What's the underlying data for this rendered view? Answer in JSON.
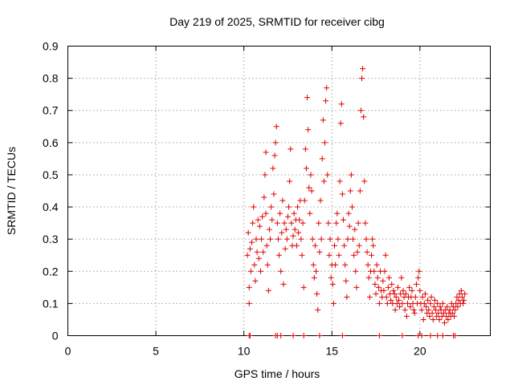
{
  "chart_data": {
    "type": "scatter",
    "title": "Day 219 of 2025, SRMTID for receiver cibg",
    "xlabel": "GPS time / hours",
    "ylabel": "SRMTID / TECUs",
    "xlim": [
      0,
      24
    ],
    "ylim": [
      0,
      0.9
    ],
    "x_ticks": [
      0,
      5,
      10,
      15,
      20
    ],
    "y_ticks": [
      0,
      0.1,
      0.2,
      0.3,
      0.4,
      0.5,
      0.6,
      0.7,
      0.8,
      0.9
    ],
    "x_tick_labels": [
      "0",
      "5",
      "10",
      "15",
      "20"
    ],
    "y_tick_labels": [
      "0",
      "0.1",
      "0.2",
      "0.3",
      "0.4",
      "0.5",
      "0.6",
      "0.7",
      "0.8",
      "0.9"
    ],
    "grid": true,
    "marker": "+",
    "color": "#e00000",
    "series": [
      {
        "name": "SRMTID",
        "points": [
          [
            10.2,
            0.25
          ],
          [
            10.25,
            0.32
          ],
          [
            10.3,
            0.15
          ],
          [
            10.3,
            0.1
          ],
          [
            10.35,
            0.27
          ],
          [
            10.4,
            0.2
          ],
          [
            10.45,
            0.29
          ],
          [
            10.5,
            0.35
          ],
          [
            10.55,
            0.4
          ],
          [
            10.6,
            0.22
          ],
          [
            10.65,
            0.17
          ],
          [
            10.7,
            0.3
          ],
          [
            10.75,
            0.26
          ],
          [
            10.8,
            0.36
          ],
          [
            10.85,
            0.24
          ],
          [
            10.9,
            0.34
          ],
          [
            10.95,
            0.2
          ],
          [
            11.0,
            0.3
          ],
          [
            11.05,
            0.37
          ],
          [
            11.1,
            0.26
          ],
          [
            11.15,
            0.43
          ],
          [
            11.2,
            0.5
          ],
          [
            11.25,
            0.38
          ],
          [
            11.25,
            0.57
          ],
          [
            11.3,
            0.28
          ],
          [
            11.35,
            0.22
          ],
          [
            11.4,
            0.14
          ],
          [
            11.45,
            0.33
          ],
          [
            11.5,
            0.3
          ],
          [
            11.55,
            0.4
          ],
          [
            11.6,
            0.36
          ],
          [
            11.65,
            0.52
          ],
          [
            11.7,
            0.44
          ],
          [
            11.75,
            0.56
          ],
          [
            11.8,
            0.6
          ],
          [
            11.85,
            0.65
          ],
          [
            11.9,
            0.35
          ],
          [
            11.95,
            0.3
          ],
          [
            12.0,
            0.25
          ],
          [
            12.05,
            0.38
          ],
          [
            12.1,
            0.2
          ],
          [
            12.15,
            0.32
          ],
          [
            12.2,
            0.42
          ],
          [
            12.25,
            0.16
          ],
          [
            12.3,
            0.35
          ],
          [
            12.35,
            0.27
          ],
          [
            12.4,
            0.33
          ],
          [
            12.45,
            0.3
          ],
          [
            12.5,
            0.37
          ],
          [
            12.55,
            0.4
          ],
          [
            12.6,
            0.48
          ],
          [
            12.65,
            0.58
          ],
          [
            12.7,
            0.35
          ],
          [
            12.75,
            0.28
          ],
          [
            12.8,
            0.31
          ],
          [
            12.85,
            0.38
          ],
          [
            12.9,
            0.33
          ],
          [
            12.95,
            0.36
          ],
          [
            13.0,
            0.28
          ],
          [
            13.05,
            0.4
          ],
          [
            13.1,
            0.32
          ],
          [
            13.15,
            0.36
          ],
          [
            13.2,
            0.42
          ],
          [
            13.25,
            0.3
          ],
          [
            13.3,
            0.25
          ],
          [
            13.35,
            0.35
          ],
          [
            13.4,
            0.15
          ],
          [
            13.45,
            0.42
          ],
          [
            13.5,
            0.58
          ],
          [
            13.55,
            0.52
          ],
          [
            13.6,
            0.74
          ],
          [
            13.65,
            0.64
          ],
          [
            13.7,
            0.46
          ],
          [
            13.75,
            0.38
          ],
          [
            13.8,
            0.5
          ],
          [
            13.85,
            0.45
          ],
          [
            13.9,
            0.3
          ],
          [
            13.95,
            0.22
          ],
          [
            14.0,
            0.18
          ],
          [
            14.05,
            0.28
          ],
          [
            14.1,
            0.2
          ],
          [
            14.15,
            0.13
          ],
          [
            14.2,
            0.08
          ],
          [
            14.25,
            0.35
          ],
          [
            14.3,
            0.26
          ],
          [
            14.35,
            0.42
          ],
          [
            14.4,
            0.3
          ],
          [
            14.45,
            0.55
          ],
          [
            14.5,
            0.67
          ],
          [
            14.55,
            0.48
          ],
          [
            14.6,
            0.6
          ],
          [
            14.65,
            0.73
          ],
          [
            14.7,
            0.77
          ],
          [
            14.75,
            0.5
          ],
          [
            14.8,
            0.35
          ],
          [
            14.85,
            0.25
          ],
          [
            14.9,
            0.3
          ],
          [
            14.95,
            0.18
          ],
          [
            15.0,
            0.22
          ],
          [
            15.05,
            0.16
          ],
          [
            15.1,
            0.1
          ],
          [
            15.15,
            0.28
          ],
          [
            15.2,
            0.22
          ],
          [
            15.25,
            0.35
          ],
          [
            15.3,
            0.38
          ],
          [
            15.35,
            0.3
          ],
          [
            15.4,
            0.25
          ],
          [
            15.45,
            0.48
          ],
          [
            15.5,
            0.66
          ],
          [
            15.55,
            0.72
          ],
          [
            15.6,
            0.44
          ],
          [
            15.65,
            0.36
          ],
          [
            15.7,
            0.28
          ],
          [
            15.75,
            0.22
          ],
          [
            15.8,
            0.17
          ],
          [
            15.85,
            0.12
          ],
          [
            15.9,
            0.3
          ],
          [
            15.95,
            0.38
          ],
          [
            16.0,
            0.34
          ],
          [
            16.05,
            0.45
          ],
          [
            16.1,
            0.5
          ],
          [
            16.15,
            0.4
          ],
          [
            16.2,
            0.3
          ],
          [
            16.25,
            0.25
          ],
          [
            16.3,
            0.33
          ],
          [
            16.35,
            0.2
          ],
          [
            16.4,
            0.15
          ],
          [
            16.45,
            0.26
          ],
          [
            16.5,
            0.35
          ],
          [
            16.55,
            0.28
          ],
          [
            16.6,
            0.45
          ],
          [
            16.65,
            0.7
          ],
          [
            16.7,
            0.8
          ],
          [
            16.75,
            0.83
          ],
          [
            16.8,
            0.68
          ],
          [
            16.85,
            0.48
          ],
          [
            16.9,
            0.35
          ],
          [
            16.95,
            0.3
          ],
          [
            17.0,
            0.26
          ],
          [
            17.05,
            0.22
          ],
          [
            17.1,
            0.18
          ],
          [
            17.15,
            0.12
          ],
          [
            17.2,
            0.2
          ],
          [
            17.25,
            0.25
          ],
          [
            17.3,
            0.3
          ],
          [
            17.35,
            0.28
          ],
          [
            17.4,
            0.2
          ],
          [
            17.45,
            0.16
          ],
          [
            17.5,
            0.13
          ],
          [
            17.55,
            0.22
          ],
          [
            17.6,
            0.18
          ],
          [
            17.65,
            0.15
          ],
          [
            17.7,
            0.1
          ],
          [
            17.75,
            0.2
          ],
          [
            17.8,
            0.14
          ],
          [
            17.85,
            0.12
          ],
          [
            17.9,
            0.17
          ],
          [
            17.95,
            0.14
          ],
          [
            18.0,
            0.2
          ],
          [
            18.05,
            0.25
          ],
          [
            18.1,
            0.12
          ],
          [
            18.15,
            0.1
          ],
          [
            18.2,
            0.15
          ],
          [
            18.25,
            0.18
          ],
          [
            18.3,
            0.13
          ],
          [
            18.35,
            0.11
          ],
          [
            18.4,
            0.16
          ],
          [
            18.45,
            0.1
          ],
          [
            18.5,
            0.14
          ],
          [
            18.55,
            0.13
          ],
          [
            18.6,
            0.08
          ],
          [
            18.65,
            0.12
          ],
          [
            18.7,
            0.1
          ],
          [
            18.75,
            0.15
          ],
          [
            18.8,
            0.11
          ],
          [
            18.85,
            0.09
          ],
          [
            18.9,
            0.13
          ],
          [
            18.95,
            0.18
          ],
          [
            19.0,
            0.1
          ],
          [
            19.05,
            0.14
          ],
          [
            19.1,
            0.12
          ],
          [
            19.15,
            0.08
          ],
          [
            19.2,
            0.13
          ],
          [
            19.25,
            0.06
          ],
          [
            19.3,
            0.1
          ],
          [
            19.35,
            0.12
          ],
          [
            19.4,
            0.15
          ],
          [
            19.45,
            0.09
          ],
          [
            19.5,
            0.12
          ],
          [
            19.55,
            0.14
          ],
          [
            19.6,
            0.1
          ],
          [
            19.65,
            0.08
          ],
          [
            19.7,
            0.07
          ],
          [
            19.75,
            0.12
          ],
          [
            19.8,
            0.16
          ],
          [
            19.85,
            0.1
          ],
          [
            19.9,
            0.18
          ],
          [
            19.95,
            0.2
          ],
          [
            20.0,
            0.14
          ],
          [
            20.05,
            0.1
          ],
          [
            20.1,
            0.08
          ],
          [
            20.15,
            0.12
          ],
          [
            20.2,
            0.05
          ],
          [
            20.25,
            0.1
          ],
          [
            20.3,
            0.13
          ],
          [
            20.35,
            0.09
          ],
          [
            20.4,
            0.07
          ],
          [
            20.45,
            0.11
          ],
          [
            20.5,
            0.08
          ],
          [
            20.55,
            0.06
          ],
          [
            20.6,
            0.1
          ],
          [
            20.65,
            0.12
          ],
          [
            20.7,
            0.07
          ],
          [
            20.75,
            0.05
          ],
          [
            20.8,
            0.09
          ],
          [
            20.85,
            0.11
          ],
          [
            20.9,
            0.08
          ],
          [
            20.95,
            0.06
          ],
          [
            21.0,
            0.1
          ],
          [
            21.05,
            0.07
          ],
          [
            21.1,
            0.05
          ],
          [
            21.15,
            0.09
          ],
          [
            21.2,
            0.08
          ],
          [
            21.25,
            0.06
          ],
          [
            21.3,
            0.1
          ],
          [
            21.35,
            0.07
          ],
          [
            21.4,
            0.04
          ],
          [
            21.45,
            0.08
          ],
          [
            21.5,
            0.06
          ],
          [
            21.55,
            0.09
          ],
          [
            21.6,
            0.05
          ],
          [
            21.65,
            0.07
          ],
          [
            21.7,
            0.08
          ],
          [
            21.75,
            0.06
          ],
          [
            21.8,
            0.1
          ],
          [
            21.85,
            0.07
          ],
          [
            21.9,
            0.09
          ],
          [
            21.95,
            0.06
          ],
          [
            22.0,
            0.08
          ],
          [
            22.05,
            0.1
          ],
          [
            22.1,
            0.12
          ],
          [
            22.15,
            0.09
          ],
          [
            22.2,
            0.11
          ],
          [
            22.25,
            0.13
          ],
          [
            22.3,
            0.1
          ],
          [
            22.35,
            0.14
          ],
          [
            22.4,
            0.12
          ],
          [
            22.45,
            0.1
          ],
          [
            22.5,
            0.11
          ],
          [
            22.55,
            0.13
          ],
          [
            10.3,
            0.0
          ],
          [
            10.35,
            0.0
          ],
          [
            11.8,
            0.0
          ],
          [
            11.9,
            0.0
          ],
          [
            12.1,
            0.0
          ],
          [
            12.8,
            0.0
          ],
          [
            13.4,
            0.0
          ],
          [
            14.3,
            0.0
          ],
          [
            15.6,
            0.0
          ],
          [
            17.7,
            0.0
          ],
          [
            19.0,
            0.0
          ],
          [
            19.9,
            0.0
          ],
          [
            20.1,
            0.0
          ],
          [
            20.6,
            0.0
          ],
          [
            21.0,
            0.0
          ],
          [
            21.3,
            0.0
          ],
          [
            21.9,
            0.0
          ],
          [
            22.0,
            0.0
          ]
        ]
      }
    ]
  }
}
